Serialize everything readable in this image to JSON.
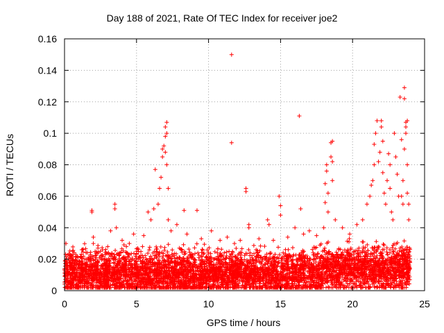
{
  "chart_data": {
    "type": "scatter",
    "title": "Day 188 of 2021, Rate Of TEC Index for receiver joe2",
    "xlabel": "GPS time / hours",
    "ylabel": "ROTI / TECUs",
    "xlim": [
      0,
      25
    ],
    "ylim": [
      0,
      0.16
    ],
    "xticks": [
      0,
      5,
      10,
      15,
      20,
      25
    ],
    "xtick_labels": [
      "0",
      "5",
      "10",
      "15",
      "20",
      "25"
    ],
    "yticks": [
      0,
      0.02,
      0.04,
      0.06,
      0.08,
      0.1,
      0.12,
      0.14,
      0.16
    ],
    "ytick_labels": [
      "0",
      "0.02",
      "0.04",
      "0.06",
      "0.08",
      "0.1",
      "0.12",
      "0.14",
      "0.16"
    ],
    "grid": true,
    "marker": "+",
    "marker_color": "#ff0000",
    "series": [
      {
        "name": "ROTI",
        "points": [
          [
            0.1,
            0.03
          ],
          [
            0.2,
            0.018
          ],
          [
            0.5,
            0.022
          ],
          [
            0.8,
            0.015
          ],
          [
            1.2,
            0.026
          ],
          [
            1.5,
            0.02
          ],
          [
            1.9,
            0.051
          ],
          [
            1.9,
            0.05
          ],
          [
            2.0,
            0.034
          ],
          [
            2.0,
            0.03
          ],
          [
            2.5,
            0.022
          ],
          [
            3.0,
            0.028
          ],
          [
            3.2,
            0.038
          ],
          [
            3.5,
            0.055
          ],
          [
            3.5,
            0.052
          ],
          [
            3.6,
            0.04
          ],
          [
            4.0,
            0.032
          ],
          [
            4.5,
            0.03
          ],
          [
            4.8,
            0.036
          ],
          [
            5.0,
            0.025
          ],
          [
            5.5,
            0.035
          ],
          [
            5.8,
            0.05
          ],
          [
            6.0,
            0.045
          ],
          [
            6.2,
            0.052
          ],
          [
            6.3,
            0.077
          ],
          [
            6.5,
            0.055
          ],
          [
            6.6,
            0.065
          ],
          [
            6.7,
            0.072
          ],
          [
            6.8,
            0.085
          ],
          [
            6.8,
            0.09
          ],
          [
            6.9,
            0.092
          ],
          [
            7.0,
            0.098
          ],
          [
            7.0,
            0.104
          ],
          [
            7.1,
            0.107
          ],
          [
            7.1,
            0.1
          ],
          [
            7.0,
            0.088
          ],
          [
            7.1,
            0.08
          ],
          [
            7.2,
            0.065
          ],
          [
            7.2,
            0.045
          ],
          [
            7.4,
            0.038
          ],
          [
            7.8,
            0.042
          ],
          [
            8.3,
            0.051
          ],
          [
            8.5,
            0.036
          ],
          [
            9.2,
            0.051
          ],
          [
            9.5,
            0.033
          ],
          [
            10.2,
            0.038
          ],
          [
            10.8,
            0.032
          ],
          [
            11.3,
            0.034
          ],
          [
            11.6,
            0.15
          ],
          [
            11.6,
            0.094
          ],
          [
            11.8,
            0.03
          ],
          [
            12.2,
            0.032
          ],
          [
            12.6,
            0.065
          ],
          [
            12.6,
            0.063
          ],
          [
            12.8,
            0.042
          ],
          [
            12.8,
            0.04
          ],
          [
            13.5,
            0.033
          ],
          [
            14.1,
            0.045
          ],
          [
            14.2,
            0.042
          ],
          [
            14.5,
            0.032
          ],
          [
            14.9,
            0.06
          ],
          [
            15.0,
            0.054
          ],
          [
            15.0,
            0.048
          ],
          [
            15.5,
            0.034
          ],
          [
            16.0,
            0.04
          ],
          [
            16.3,
            0.111
          ],
          [
            16.4,
            0.052
          ],
          [
            16.6,
            0.036
          ],
          [
            17.0,
            0.038
          ],
          [
            17.5,
            0.035
          ],
          [
            18.0,
            0.04
          ],
          [
            18.1,
            0.068
          ],
          [
            18.1,
            0.056
          ],
          [
            18.2,
            0.076
          ],
          [
            18.2,
            0.08
          ],
          [
            18.3,
            0.062
          ],
          [
            18.3,
            0.05
          ],
          [
            18.5,
            0.094
          ],
          [
            18.6,
            0.095
          ],
          [
            18.5,
            0.085
          ],
          [
            18.6,
            0.082
          ],
          [
            18.6,
            0.07
          ],
          [
            18.8,
            0.045
          ],
          [
            19.3,
            0.04
          ],
          [
            19.8,
            0.036
          ],
          [
            20.3,
            0.042
          ],
          [
            20.7,
            0.045
          ],
          [
            21.0,
            0.055
          ],
          [
            21.2,
            0.06
          ],
          [
            21.3,
            0.067
          ],
          [
            21.4,
            0.07
          ],
          [
            21.5,
            0.08
          ],
          [
            21.5,
            0.093
          ],
          [
            21.6,
            0.1
          ],
          [
            21.7,
            0.108
          ],
          [
            21.8,
            0.082
          ],
          [
            21.9,
            0.088
          ],
          [
            22.0,
            0.108
          ],
          [
            22.0,
            0.104
          ],
          [
            22.1,
            0.095
          ],
          [
            22.1,
            0.075
          ],
          [
            22.2,
            0.062
          ],
          [
            22.3,
            0.055
          ],
          [
            22.4,
            0.07
          ],
          [
            22.5,
            0.087
          ],
          [
            22.6,
            0.08
          ],
          [
            22.6,
            0.065
          ],
          [
            22.7,
            0.05
          ],
          [
            22.8,
            0.045
          ],
          [
            22.9,
            0.1
          ],
          [
            23.0,
            0.085
          ],
          [
            23.1,
            0.074
          ],
          [
            23.2,
            0.06
          ],
          [
            23.3,
            0.123
          ],
          [
            23.4,
            0.096
          ],
          [
            23.4,
            0.06
          ],
          [
            23.5,
            0.07
          ],
          [
            23.5,
            0.055
          ],
          [
            23.6,
            0.129
          ],
          [
            23.6,
            0.122
          ],
          [
            23.6,
            0.09
          ],
          [
            23.7,
            0.104
          ],
          [
            23.7,
            0.107
          ],
          [
            23.7,
            0.1
          ],
          [
            23.8,
            0.108
          ],
          [
            23.8,
            0.08
          ],
          [
            23.8,
            0.062
          ],
          [
            23.9,
            0.055
          ],
          [
            23.9,
            0.045
          ]
        ]
      }
    ]
  }
}
